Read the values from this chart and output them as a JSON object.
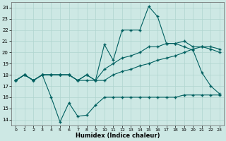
{
  "xlabel": "Humidex (Indice chaleur)",
  "bg_color": "#cde8e4",
  "grid_color": "#b0d5cf",
  "line_color": "#006060",
  "xlim": [
    -0.5,
    23.5
  ],
  "ylim": [
    13.5,
    24.5
  ],
  "xticks": [
    0,
    1,
    2,
    3,
    4,
    5,
    6,
    7,
    8,
    9,
    10,
    11,
    12,
    13,
    14,
    15,
    16,
    17,
    18,
    19,
    20,
    21,
    22,
    23
  ],
  "yticks": [
    14,
    15,
    16,
    17,
    18,
    19,
    20,
    21,
    22,
    23,
    24
  ],
  "line1_x": [
    0,
    1,
    2,
    3,
    4,
    5,
    6,
    7,
    8,
    9,
    10,
    11,
    12,
    13,
    14,
    15,
    16,
    17,
    18,
    19,
    20,
    21,
    22,
    23
  ],
  "line1_y": [
    17.5,
    18.0,
    17.5,
    18.0,
    16.0,
    13.8,
    15.5,
    14.3,
    14.4,
    15.3,
    16.0,
    16.0,
    16.0,
    16.0,
    16.0,
    16.0,
    16.0,
    16.0,
    16.0,
    16.2,
    16.2,
    16.2,
    16.2,
    16.2
  ],
  "line2_x": [
    0,
    1,
    2,
    3,
    4,
    5,
    6,
    7,
    8,
    9,
    10,
    11,
    12,
    13,
    14,
    15,
    16,
    17,
    18,
    19,
    20,
    21,
    22,
    23
  ],
  "line2_y": [
    17.5,
    18.0,
    17.5,
    18.0,
    18.0,
    18.0,
    18.0,
    17.5,
    17.5,
    17.5,
    17.5,
    18.0,
    18.3,
    18.5,
    18.8,
    19.0,
    19.3,
    19.5,
    19.7,
    20.0,
    20.3,
    20.5,
    20.5,
    20.3
  ],
  "line3_x": [
    0,
    1,
    2,
    3,
    4,
    5,
    6,
    7,
    8,
    9,
    10,
    11,
    12,
    13,
    14,
    15,
    16,
    17,
    18,
    19,
    20,
    21,
    22,
    23
  ],
  "line3_y": [
    17.5,
    18.0,
    17.5,
    18.0,
    18.0,
    18.0,
    18.0,
    17.5,
    18.0,
    17.5,
    18.5,
    19.0,
    19.5,
    19.7,
    20.0,
    20.5,
    20.5,
    20.8,
    20.8,
    21.0,
    20.5,
    20.5,
    20.3,
    20.0
  ],
  "line4_x": [
    0,
    1,
    2,
    3,
    4,
    5,
    6,
    7,
    8,
    9,
    10,
    11,
    12,
    13,
    14,
    15,
    16,
    17,
    18,
    19,
    20,
    21,
    22,
    23
  ],
  "line4_y": [
    17.5,
    18.0,
    17.5,
    18.0,
    18.0,
    18.0,
    18.0,
    17.5,
    18.0,
    17.5,
    20.7,
    19.3,
    22.0,
    22.0,
    22.0,
    24.1,
    23.2,
    20.8,
    20.8,
    20.5,
    20.2,
    18.2,
    17.0,
    16.3
  ]
}
